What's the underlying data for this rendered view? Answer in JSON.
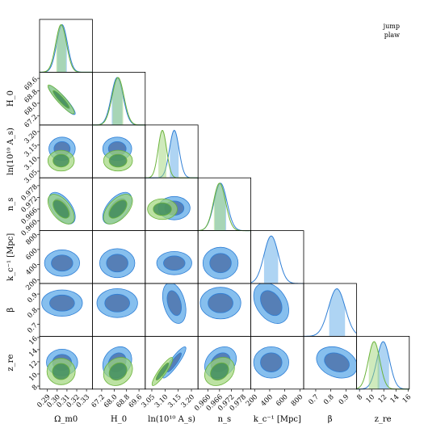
{
  "chart_data": {
    "type": "corner",
    "parameters": [
      {
        "key": "omega_m0",
        "label": "Ω_m0",
        "ticks": [
          "0.29",
          "0.30",
          "0.31",
          "0.32",
          "0.33"
        ],
        "range": [
          0.282,
          0.336
        ]
      },
      {
        "key": "H0",
        "label": "H_0",
        "ticks": [
          "67.2",
          "68.0",
          "68.8",
          "69.6"
        ],
        "range": [
          66.6,
          70.0
        ]
      },
      {
        "key": "lnAs",
        "label": "ln(10¹⁰ A_s)",
        "ticks": [
          "3.05",
          "3.10",
          "3.15",
          "3.20"
        ],
        "range": [
          3.025,
          3.225
        ]
      },
      {
        "key": "ns",
        "label": "n_s",
        "ticks": [
          "0.960",
          "0.966",
          "0.972",
          "0.978"
        ],
        "range": [
          0.955,
          0.982
        ]
      },
      {
        "key": "kc_inv",
        "label": "k_c⁻¹ [Mpc]",
        "ticks": [
          "200",
          "400",
          "600",
          "800"
        ],
        "range": [
          150,
          850
        ]
      },
      {
        "key": "beta",
        "label": "β",
        "ticks": [
          "0.7",
          "0.8",
          "0.9"
        ],
        "range": [
          0.62,
          0.97
        ]
      },
      {
        "key": "zre",
        "label": "z_re",
        "ticks": [
          "8",
          "10",
          "12",
          "14",
          "16"
        ],
        "range": [
          7.5,
          16.2
        ]
      }
    ],
    "series": [
      {
        "name": "jump",
        "color": "#2f7fd6",
        "fill": "#5ea9e8",
        "dark": "#4a6fa8",
        "mean": [
          0.305,
          68.2,
          3.135,
          0.9665,
          420,
          0.84,
          11.9
        ],
        "std": [
          0.0055,
          0.38,
          0.018,
          0.0033,
          95,
          0.055,
          1.05
        ]
      },
      {
        "name": "plaw",
        "color": "#6ab33a",
        "fill": "#9fd67a",
        "dark": "#3f8a5a",
        "mean": [
          0.304,
          68.25,
          3.09,
          0.966,
          null,
          null,
          10.4
        ],
        "std": [
          0.0055,
          0.38,
          0.016,
          0.0031,
          null,
          null,
          0.95
        ]
      }
    ],
    "correlations": [
      {
        "pair": [
          "omega_m0",
          "H0"
        ],
        "r": -0.92
      },
      {
        "pair": [
          "omega_m0",
          "ns"
        ],
        "r": -0.55
      },
      {
        "pair": [
          "H0",
          "ns"
        ],
        "r": 0.55
      },
      {
        "pair": [
          "lnAs",
          "zre"
        ],
        "r": 0.9
      },
      {
        "pair": [
          "ns",
          "zre"
        ],
        "r": 0.25
      },
      {
        "pair": [
          "H0",
          "zre"
        ],
        "r": 0.2
      },
      {
        "pair": [
          "kc_inv",
          "beta"
        ],
        "r": -0.35
      },
      {
        "pair": [
          "lnAs",
          "beta"
        ],
        "r": -0.35
      },
      {
        "pair": [
          "beta",
          "zre"
        ],
        "r": -0.25
      }
    ],
    "legend": {
      "position": "top-right",
      "entries": [
        "jump",
        "plaw"
      ]
    }
  }
}
